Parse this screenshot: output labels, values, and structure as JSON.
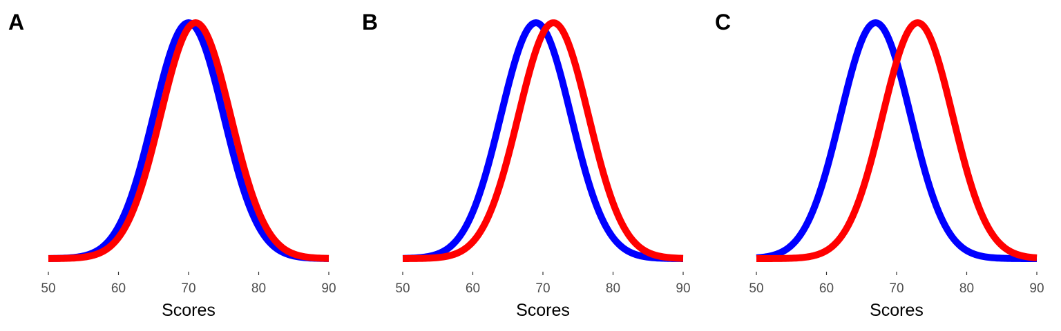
{
  "chart_data": [
    {
      "type": "line",
      "panel_label": "A",
      "xlabel": "Scores",
      "ylabel": "",
      "xlim": [
        50,
        90
      ],
      "xticks": [
        "50",
        "60",
        "70",
        "80",
        "90"
      ],
      "y_axis_visible": false,
      "grid": false,
      "series": [
        {
          "color": "#0000FF",
          "distribution": "normal",
          "mean": 70,
          "sd": 5
        },
        {
          "color": "#FF0000",
          "distribution": "normal",
          "mean": 71,
          "sd": 5
        }
      ]
    },
    {
      "type": "line",
      "panel_label": "B",
      "xlabel": "Scores",
      "ylabel": "",
      "xlim": [
        50,
        90
      ],
      "xticks": [
        "50",
        "60",
        "70",
        "80",
        "90"
      ],
      "y_axis_visible": false,
      "grid": false,
      "series": [
        {
          "color": "#0000FF",
          "distribution": "normal",
          "mean": 69,
          "sd": 5
        },
        {
          "color": "#FF0000",
          "distribution": "normal",
          "mean": 71.5,
          "sd": 5
        }
      ]
    },
    {
      "type": "line",
      "panel_label": "C",
      "xlabel": "Scores",
      "ylabel": "",
      "xlim": [
        50,
        90
      ],
      "xticks": [
        "50",
        "60",
        "70",
        "80",
        "90"
      ],
      "y_axis_visible": false,
      "grid": false,
      "series": [
        {
          "color": "#0000FF",
          "distribution": "normal",
          "mean": 67,
          "sd": 5
        },
        {
          "color": "#FF0000",
          "distribution": "normal",
          "mean": 73,
          "sd": 5
        }
      ]
    }
  ]
}
